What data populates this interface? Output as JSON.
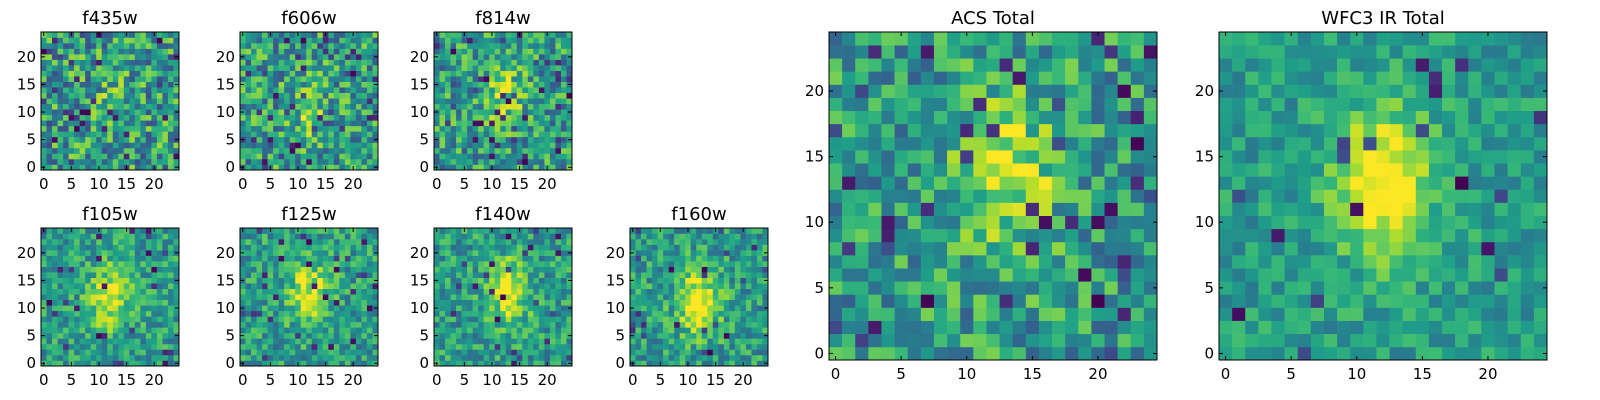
{
  "chart_data": {
    "type": "heatmap",
    "colormap": "viridis",
    "grid": false,
    "panels": [
      {
        "title": "f435w",
        "grid_size": 25,
        "xlim": [
          -0.5,
          24.5
        ],
        "ylim": [
          -0.5,
          24.5
        ],
        "xticks": [
          0,
          5,
          10,
          15,
          20
        ],
        "yticks": [
          0,
          5,
          10,
          15,
          20
        ],
        "peak": {
          "x": 12,
          "y": 12
        },
        "peak_strength": 0.1,
        "noise": 0.62,
        "dark_fraction": 0.06,
        "seed": 11
      },
      {
        "title": "f606w",
        "grid_size": 25,
        "xlim": [
          -0.5,
          24.5
        ],
        "ylim": [
          -0.5,
          24.5
        ],
        "xticks": [
          0,
          5,
          10,
          15,
          20
        ],
        "yticks": [
          0,
          5,
          10,
          15,
          20
        ],
        "peak": {
          "x": 12,
          "y": 10
        },
        "peak_strength": 0.22,
        "noise": 0.58,
        "dark_fraction": 0.06,
        "seed": 23
      },
      {
        "title": "f814w",
        "grid_size": 25,
        "xlim": [
          -0.5,
          24.5
        ],
        "ylim": [
          -0.5,
          24.5
        ],
        "xticks": [
          0,
          5,
          10,
          15,
          20
        ],
        "yticks": [
          0,
          5,
          10,
          15,
          20
        ],
        "peak": {
          "x": 12,
          "y": 13
        },
        "peak_strength": 0.32,
        "noise": 0.55,
        "dark_fraction": 0.06,
        "seed": 37
      },
      {
        "title": "f105w",
        "grid_size": 25,
        "xlim": [
          -0.5,
          24.5
        ],
        "ylim": [
          -0.5,
          24.5
        ],
        "xticks": [
          0,
          5,
          10,
          15,
          20
        ],
        "yticks": [
          0,
          5,
          10,
          15,
          20
        ],
        "peak": {
          "x": 12,
          "y": 12
        },
        "peak_strength": 0.48,
        "noise": 0.42,
        "dark_fraction": 0.04,
        "seed": 41
      },
      {
        "title": "f125w",
        "grid_size": 25,
        "xlim": [
          -0.5,
          24.5
        ],
        "ylim": [
          -0.5,
          24.5
        ],
        "xticks": [
          0,
          5,
          10,
          15,
          20
        ],
        "yticks": [
          0,
          5,
          10,
          15,
          20
        ],
        "peak": {
          "x": 12,
          "y": 13
        },
        "peak_strength": 0.45,
        "noise": 0.42,
        "dark_fraction": 0.04,
        "seed": 53
      },
      {
        "title": "f140w",
        "grid_size": 25,
        "xlim": [
          -0.5,
          24.5
        ],
        "ylim": [
          -0.5,
          24.5
        ],
        "xticks": [
          0,
          5,
          10,
          15,
          20
        ],
        "yticks": [
          0,
          5,
          10,
          15,
          20
        ],
        "peak": {
          "x": 13,
          "y": 13
        },
        "peak_strength": 0.48,
        "noise": 0.42,
        "dark_fraction": 0.04,
        "seed": 67
      },
      {
        "title": "f160w",
        "grid_size": 25,
        "xlim": [
          -0.5,
          24.5
        ],
        "ylim": [
          -0.5,
          24.5
        ],
        "xticks": [
          0,
          5,
          10,
          15,
          20
        ],
        "yticks": [
          0,
          5,
          10,
          15,
          20
        ],
        "peak": {
          "x": 12,
          "y": 11
        },
        "peak_strength": 0.55,
        "noise": 0.42,
        "dark_fraction": 0.05,
        "seed": 79
      },
      {
        "title": "ACS Total",
        "grid_size": 25,
        "xlim": [
          -0.5,
          24.5
        ],
        "ylim": [
          -0.5,
          24.5
        ],
        "xticks": [
          0,
          5,
          10,
          15,
          20
        ],
        "yticks": [
          0,
          5,
          10,
          15,
          20
        ],
        "peak": {
          "x": 13,
          "y": 14
        },
        "peak_strength": 0.42,
        "noise": 0.5,
        "dark_fraction": 0.05,
        "seed": 89
      },
      {
        "title": "WFC3 IR Total",
        "grid_size": 25,
        "xlim": [
          -0.5,
          24.5
        ],
        "ylim": [
          -0.5,
          24.5
        ],
        "xticks": [
          0,
          5,
          10,
          15,
          20
        ],
        "yticks": [
          0,
          5,
          10,
          15,
          20
        ],
        "peak": {
          "x": 12,
          "y": 13
        },
        "peak_strength": 0.6,
        "noise": 0.3,
        "dark_fraction": 0.03,
        "seed": 97
      }
    ]
  }
}
